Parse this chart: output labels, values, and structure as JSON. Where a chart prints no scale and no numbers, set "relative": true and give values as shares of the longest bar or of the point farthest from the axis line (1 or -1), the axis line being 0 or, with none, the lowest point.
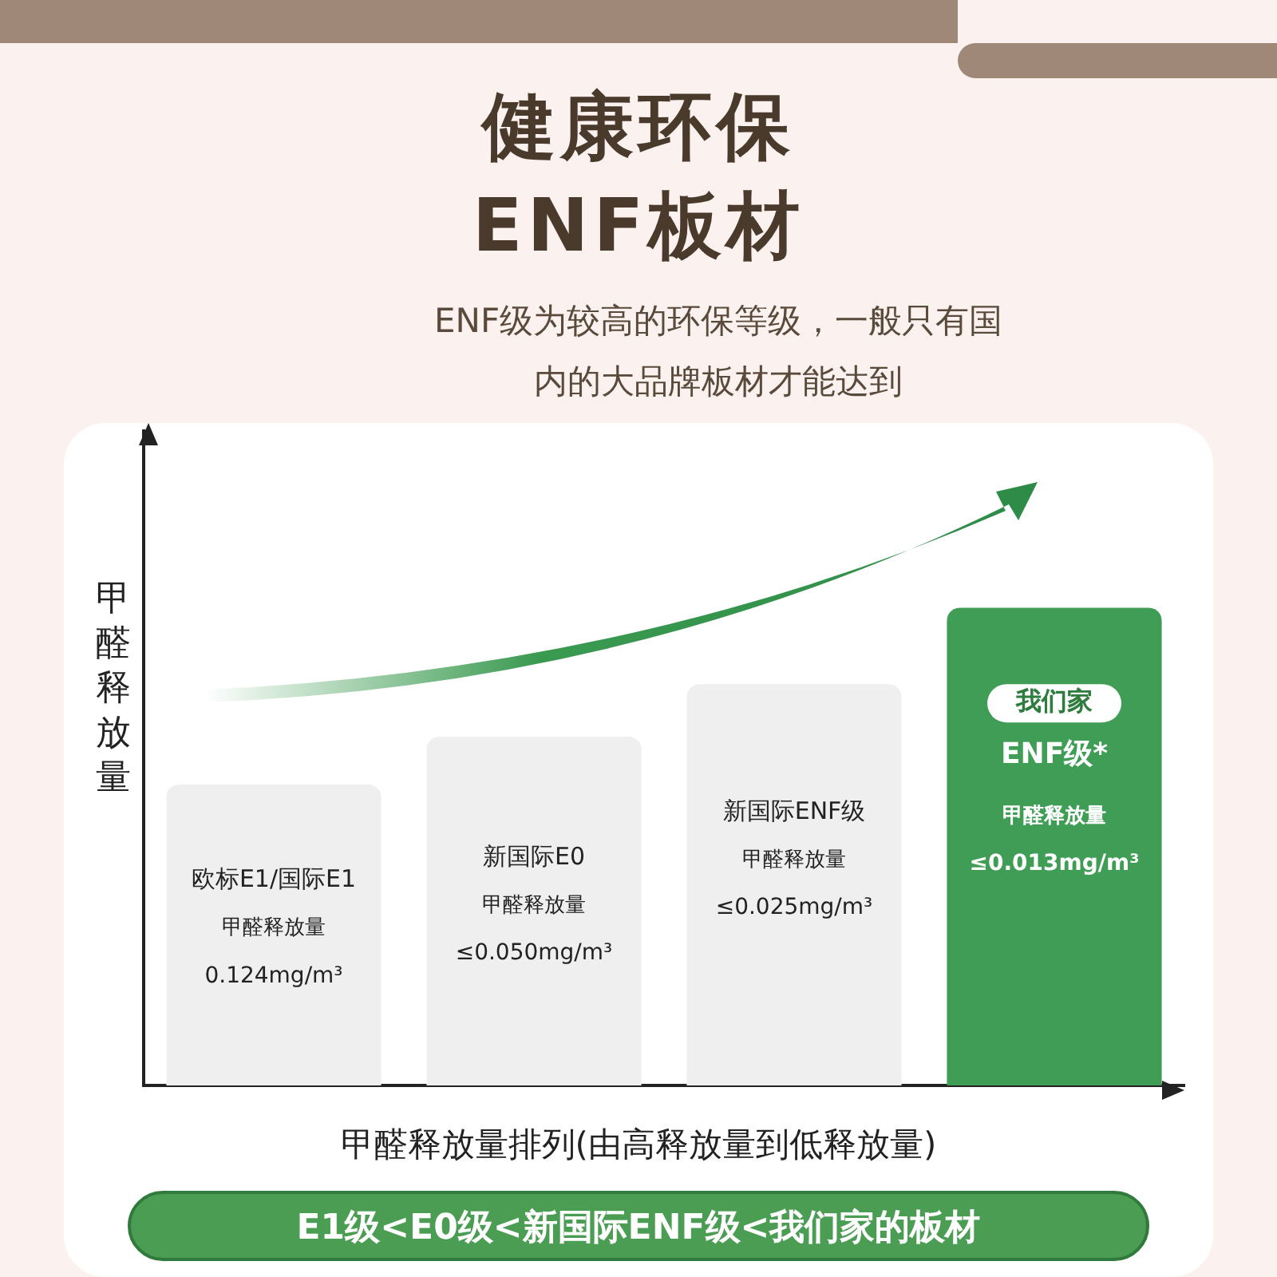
{
  "chart_data": {
    "type": "bar",
    "title": "健康环保\nENF板材",
    "subtitle": "ENF级为较高的环保等级，一般只有国内的大品牌板材才能达到",
    "xlabel": "甲醛释放量排列(由高释放量到低释放量)",
    "ylabel": "甲醛释放量",
    "relative": true,
    "categories": [
      "欧标E1/国际E1",
      "新国际E0",
      "新国际ENF级",
      "ENF级*"
    ],
    "values": [
      0.63,
      0.73,
      0.84,
      1
    ],
    "colors": [
      "#efefef",
      "#efefef",
      "#efefef",
      "#3f9d55"
    ],
    "annotations": [
      "甲醛释放量\n0.124mg/m³",
      "甲醛释放量\n≤0.050mg/m³",
      "甲醛释放量\n≤0.025mg/m³",
      "甲醛释放量\n≤0.013mg/m³",
      "我们家",
      "E1级<E0级<新国际ENF级<我们家的板材"
    ],
    "grid": false,
    "legend": false
  }
}
